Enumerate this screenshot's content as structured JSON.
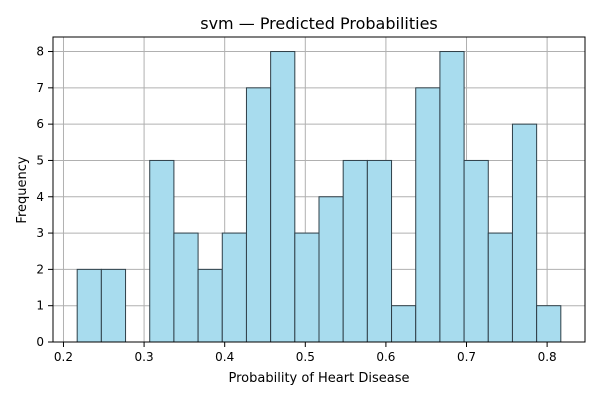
{
  "chart_data": {
    "type": "bar",
    "title": "svm — Predicted Probabilities",
    "xlabel": "Probability of Heart Disease",
    "ylabel": "Frequency",
    "bins": [
      {
        "start": 0.217,
        "end": 0.247,
        "count": 2
      },
      {
        "start": 0.247,
        "end": 0.277,
        "count": 2
      },
      {
        "start": 0.277,
        "end": 0.307,
        "count": 0
      },
      {
        "start": 0.307,
        "end": 0.337,
        "count": 5
      },
      {
        "start": 0.337,
        "end": 0.367,
        "count": 3
      },
      {
        "start": 0.367,
        "end": 0.397,
        "count": 2
      },
      {
        "start": 0.397,
        "end": 0.427,
        "count": 3
      },
      {
        "start": 0.427,
        "end": 0.457,
        "count": 7
      },
      {
        "start": 0.457,
        "end": 0.487,
        "count": 8
      },
      {
        "start": 0.487,
        "end": 0.517,
        "count": 3
      },
      {
        "start": 0.517,
        "end": 0.547,
        "count": 4
      },
      {
        "start": 0.547,
        "end": 0.577,
        "count": 5
      },
      {
        "start": 0.577,
        "end": 0.607,
        "count": 5
      },
      {
        "start": 0.607,
        "end": 0.637,
        "count": 1
      },
      {
        "start": 0.637,
        "end": 0.667,
        "count": 7
      },
      {
        "start": 0.667,
        "end": 0.697,
        "count": 8
      },
      {
        "start": 0.697,
        "end": 0.727,
        "count": 5
      },
      {
        "start": 0.727,
        "end": 0.757,
        "count": 3
      },
      {
        "start": 0.757,
        "end": 0.787,
        "count": 6
      },
      {
        "start": 0.787,
        "end": 0.817,
        "count": 1
      }
    ],
    "xlim": [
      0.187,
      0.847
    ],
    "ylim": [
      0,
      8.4
    ],
    "xticks": [
      0.2,
      0.3,
      0.4,
      0.5,
      0.6,
      0.7,
      0.8
    ],
    "yticks": [
      0,
      1,
      2,
      3,
      4,
      5,
      6,
      7,
      8
    ],
    "grid": true,
    "bar_color": "#a8dcee",
    "edge_color": "#2f3f48"
  }
}
